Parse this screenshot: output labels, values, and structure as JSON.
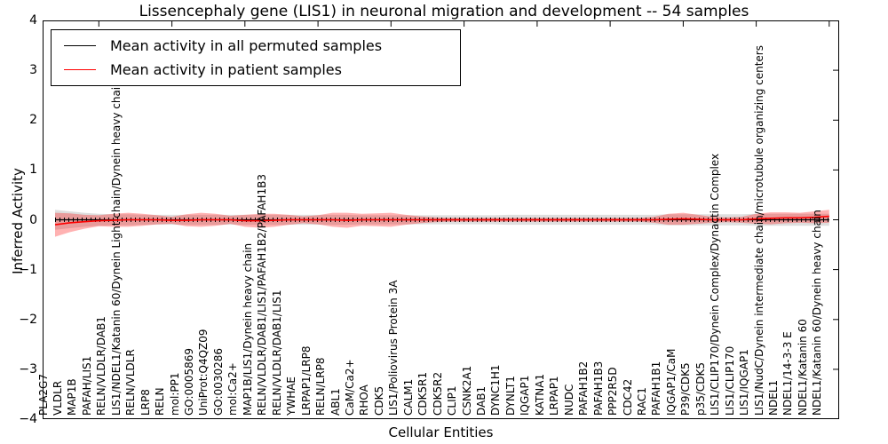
{
  "chart_data": {
    "type": "line",
    "title": "Lissencephaly gene (LIS1) in neuronal migration and development -- 54 samples",
    "xlabel": "Cellular Entities",
    "ylabel": "Inferred Activity",
    "ylim": [
      -4,
      4
    ],
    "ytick_labels": [
      "4",
      "3",
      "2",
      "1",
      "0",
      "−1",
      "−2",
      "−3",
      "−4"
    ],
    "ytick_values": [
      4,
      3,
      2,
      1,
      0,
      -1,
      -2,
      -3,
      -4
    ],
    "grid": false,
    "legend_position": "upper left",
    "categories": [
      "PLA2G7",
      "VLDLR",
      "MAP1B",
      "PAFAH/LIS1",
      "RELN/VLDLR/DAB1",
      "LIS1/NDEL1/Katanin 60/Dynein Light chain/Dynein heavy chain",
      "RELN/VLDLR",
      "LRP8",
      "RELN",
      "mol:PP1",
      "GO:0005869",
      "UniProt:Q4QZ09",
      "GO:0030286",
      "mol:Ca2+",
      "MAP1B/LIS1/Dynein heavy chain",
      "RELN/VLDLR/DAB1/LIS1/PAFAH1B2/PAFAH1B3",
      "RELN/VLDLR/DAB1/LIS1",
      "YWHAE",
      "LRPAP1/LRP8",
      "RELN/LRP8",
      "ABL1",
      "CaM/Ca2+",
      "RHOA",
      "CDK5",
      "LIS1/Poliovirus Protein 3A",
      "CALM1",
      "CDK5R1",
      "CDK5R2",
      "CLIP1",
      "CSNK2A1",
      "DAB1",
      "DYNC1H1",
      "DYNLT1",
      "IQGAP1",
      "KATNA1",
      "LRPAP1",
      "NUDC",
      "PAFAH1B2",
      "PAFAH1B3",
      "PPP2R5D",
      "CDC42",
      "RAC1",
      "PAFAH1B1",
      "IQGAP1/CaM",
      "P39/CDK5",
      "p35/CDK5",
      "LIS1/CLIP170/Dynein Complex/Dynactin Complex",
      "LIS1/CLIP170",
      "LIS1/IQGAP1",
      "LIS1/NudC/Dynein intermediate chain/microtubule organizing centers",
      "NDEL1",
      "NDEL1/14-3-3 E",
      "NDEL1/Katanin 60",
      "NDEL1/Katanin 60/Dynein heavy chain"
    ],
    "series": [
      {
        "name": "Mean activity in all permuted samples",
        "color": "#000000",
        "band_color": "#000000",
        "band_opacity": 0.13,
        "values": [
          0,
          0,
          0,
          0,
          0,
          0,
          0,
          0,
          0,
          0,
          0,
          0,
          0,
          0,
          0,
          0,
          0,
          0,
          0,
          0,
          0,
          0,
          0,
          0,
          0,
          0,
          0,
          0,
          0,
          0,
          0,
          0,
          0,
          0,
          0,
          0,
          0,
          0,
          0,
          0,
          0,
          0,
          0,
          0,
          0,
          0,
          0,
          0,
          0,
          0,
          0,
          0,
          0,
          0
        ],
        "band_halfwidth": [
          0.2,
          0.17,
          0.14,
          0.12,
          0.11,
          0.11,
          0.1,
          0.1,
          0.1,
          0.1,
          0.1,
          0.1,
          0.1,
          0.1,
          0.1,
          0.1,
          0.1,
          0.1,
          0.1,
          0.1,
          0.1,
          0.09,
          0.09,
          0.09,
          0.09,
          0.09,
          0.09,
          0.09,
          0.09,
          0.09,
          0.09,
          0.1,
          0.1,
          0.1,
          0.1,
          0.1,
          0.1,
          0.1,
          0.1,
          0.1,
          0.1,
          0.1,
          0.11,
          0.11,
          0.11,
          0.11,
          0.11,
          0.11,
          0.12,
          0.12,
          0.12,
          0.12,
          0.12,
          0.12
        ]
      },
      {
        "name": "Mean activity in patient samples",
        "color": "#ff0000",
        "band_color": "#ff0000",
        "band_opacity": 0.3,
        "values": [
          -0.1,
          -0.06,
          -0.04,
          -0.02,
          -0.01,
          0,
          0,
          0,
          -0.01,
          -0.01,
          0,
          0,
          0,
          -0.02,
          -0.02,
          -0.01,
          0,
          0,
          0,
          0,
          -0.01,
          0,
          0,
          0,
          0,
          0,
          0,
          0,
          0,
          0,
          0,
          0,
          0,
          0,
          0,
          0,
          0,
          0,
          0,
          0,
          0,
          0,
          0.01,
          0.02,
          0.01,
          0,
          0,
          0,
          0.02,
          0.03,
          0.04,
          0.04,
          0.05,
          0.07
        ],
        "band_halfwidth": [
          0.24,
          0.19,
          0.14,
          0.11,
          0.13,
          0.14,
          0.12,
          0.09,
          0.07,
          0.12,
          0.14,
          0.12,
          0.08,
          0.12,
          0.14,
          0.13,
          0.1,
          0.07,
          0.09,
          0.14,
          0.15,
          0.12,
          0.13,
          0.14,
          0.1,
          0.07,
          0.05,
          0.04,
          0.04,
          0.04,
          0.04,
          0.04,
          0.04,
          0.04,
          0.04,
          0.04,
          0.04,
          0.04,
          0.04,
          0.04,
          0.04,
          0.06,
          0.11,
          0.12,
          0.09,
          0.06,
          0.05,
          0.06,
          0.1,
          0.12,
          0.11,
          0.1,
          0.12,
          0.13
        ]
      }
    ]
  }
}
